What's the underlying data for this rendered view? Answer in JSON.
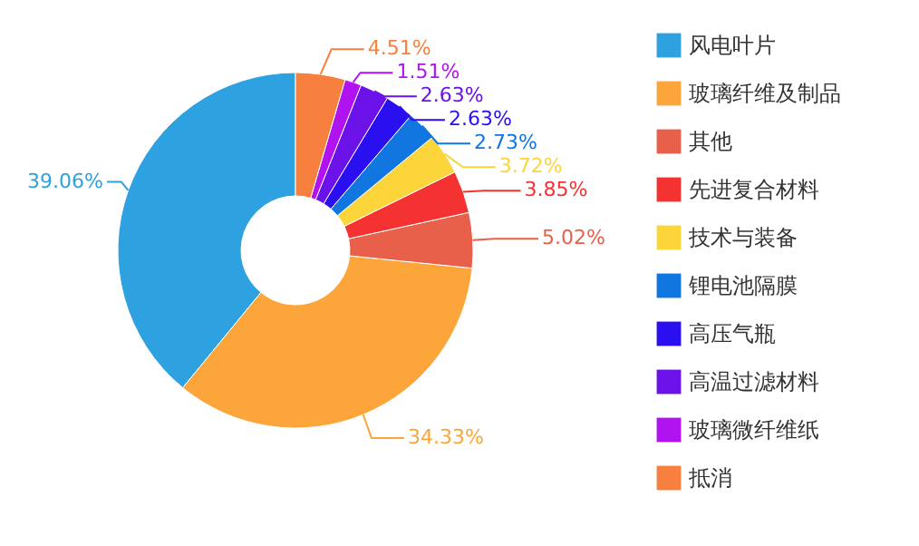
{
  "chart_data": {
    "type": "donut",
    "categories": [
      "风电叶片",
      "玻璃纤维及制品",
      "其他",
      "先进复合材料",
      "技术与装备",
      "锂电池隔膜",
      "高压气瓶",
      "高温过滤材料",
      "玻璃微纤维纸",
      "抵消"
    ],
    "values": [
      39.06,
      34.33,
      5.02,
      3.85,
      3.72,
      2.73,
      2.63,
      2.63,
      1.51,
      4.51
    ],
    "colors": [
      "#2ea1e0",
      "#fca53a",
      "#e8604a",
      "#f53232",
      "#fcd53a",
      "#1276e0",
      "#2a0ff0",
      "#6a12e8",
      "#b012f0",
      "#f8803e"
    ],
    "value_labels": [
      "39.06%",
      "34.33%",
      "5.02%",
      "3.85%",
      "3.72%",
      "2.73%",
      "2.63%",
      "2.63%",
      "1.51%",
      "4.51%"
    ],
    "legend": "right"
  }
}
